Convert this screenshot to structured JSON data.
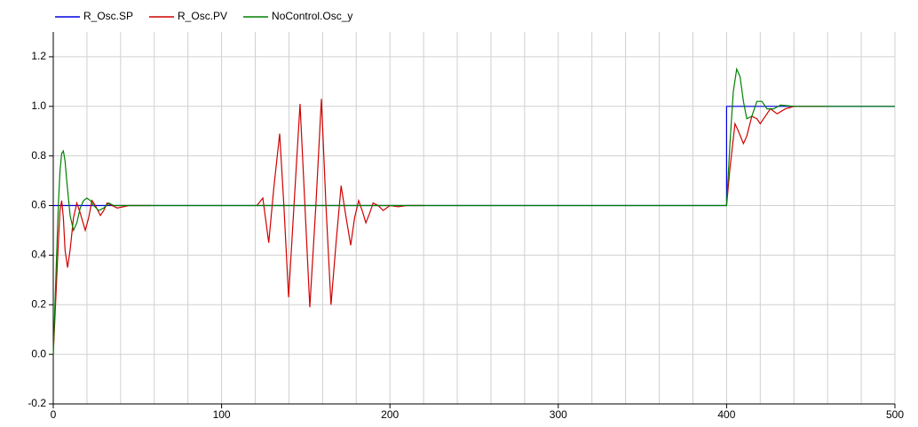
{
  "chart_data": {
    "type": "line",
    "series": [
      {
        "name": "R_Osc.SP",
        "color": "#0000e0",
        "x": [
          0,
          400,
          400,
          500
        ],
        "values": [
          0.6,
          0.6,
          1.0,
          1.0
        ]
      },
      {
        "name": "R_Osc.PV",
        "color": "#d00000",
        "x": [
          0,
          1,
          2,
          3,
          4,
          5,
          6,
          7,
          8.5,
          10,
          12,
          14,
          16,
          19,
          21,
          23,
          25,
          28,
          30,
          32,
          35,
          38,
          45,
          58,
          90,
          121,
          124.5,
          128,
          131,
          134.5,
          137,
          139.8,
          143,
          146.6,
          149.5,
          152.4,
          156,
          159.3,
          162,
          165,
          168,
          171,
          174,
          176.7,
          179,
          181.4,
          183.5,
          185.7,
          188,
          190,
          193,
          196,
          200,
          205,
          210,
          220,
          300,
          400,
          402,
          405,
          407,
          410,
          412,
          415,
          418,
          420,
          423,
          426,
          430,
          435,
          440,
          458
        ],
        "values": [
          0,
          0.15,
          0.3,
          0.45,
          0.58,
          0.62,
          0.55,
          0.42,
          0.35,
          0.42,
          0.55,
          0.61,
          0.57,
          0.5,
          0.55,
          0.62,
          0.6,
          0.56,
          0.58,
          0.61,
          0.6,
          0.59,
          0.6,
          0.6,
          null,
          0.6,
          0.63,
          0.45,
          0.67,
          0.89,
          0.6,
          0.23,
          0.6,
          1.01,
          0.6,
          0.19,
          0.6,
          1.03,
          0.6,
          0.2,
          0.45,
          0.68,
          0.55,
          0.44,
          0.55,
          0.62,
          0.58,
          0.53,
          0.57,
          0.61,
          0.6,
          0.58,
          0.6,
          0.595,
          0.6,
          0.6,
          null,
          0.6,
          0.75,
          0.93,
          0.9,
          0.85,
          0.88,
          0.96,
          0.95,
          0.93,
          0.96,
          0.99,
          0.97,
          0.99,
          1.0,
          1.0
        ]
      },
      {
        "name": "NoControl.Osc_y",
        "color": "#008000",
        "x": [
          0,
          1,
          2,
          3,
          4,
          5,
          6,
          7,
          8,
          10,
          12,
          14,
          16,
          18,
          20,
          22,
          24,
          27,
          30,
          33,
          36,
          40,
          400,
          402,
          404,
          406,
          408,
          410,
          412,
          415,
          418,
          421,
          424,
          428,
          432,
          440,
          500
        ],
        "values": [
          0,
          0.2,
          0.4,
          0.6,
          0.74,
          0.81,
          0.82,
          0.78,
          0.7,
          0.56,
          0.5,
          0.53,
          0.59,
          0.62,
          0.63,
          0.62,
          0.6,
          0.58,
          0.59,
          0.61,
          0.6,
          0.6,
          0.6,
          0.85,
          1.06,
          1.15,
          1.12,
          1.02,
          0.95,
          0.96,
          1.02,
          1.02,
          0.99,
          0.99,
          1.005,
          1.0,
          1.0
        ]
      }
    ],
    "xlim": [
      0,
      500
    ],
    "xticks": [
      0,
      100,
      200,
      300,
      400,
      500
    ],
    "xminor": [
      20,
      40,
      60,
      80,
      120,
      140,
      160,
      180,
      220,
      240,
      260,
      280,
      320,
      340,
      360,
      380,
      420,
      440,
      460,
      480
    ],
    "ylim": [
      -0.2,
      1.3
    ],
    "yticks": [
      -0.2,
      {
        "value": 0,
        "label": "0.0"
      },
      0.2,
      0.4,
      0.6,
      0.8,
      {
        "value": 1,
        "label": "1.0"
      },
      1.2
    ],
    "grid": true,
    "legend": "top-left"
  }
}
